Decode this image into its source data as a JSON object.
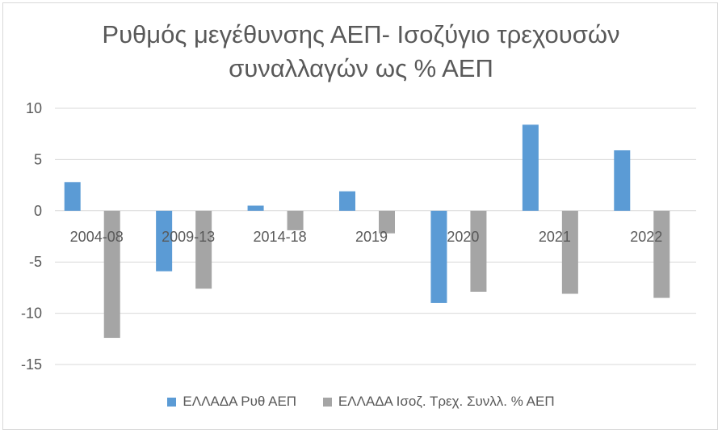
{
  "chart_data": {
    "type": "bar",
    "title_lines": [
      "Ρυθμός μεγέθυνσης ΑΕΠ- Ισοζύγιο τρεχουσών",
      "συναλλαγών ως %  ΑΕΠ"
    ],
    "categories": [
      "2004-08",
      "2009-13",
      "2014-18",
      "2019",
      "2020",
      "2021",
      "2022"
    ],
    "series": [
      {
        "name": "ΕΛΛΑΔΑ Ρυθ ΑΕΠ",
        "color": "#5b9bd5",
        "values": [
          2.8,
          -5.9,
          0.5,
          1.9,
          -9.0,
          8.4,
          5.9
        ]
      },
      {
        "name": "ΕΛΛΑΔΑ Ισοζ. Τρεχ. Συνλλ. % ΑΕΠ",
        "color": "#a5a5a5",
        "values": [
          -12.4,
          -7.6,
          -1.9,
          -2.2,
          -7.9,
          -8.1,
          -8.5
        ]
      }
    ],
    "ylim": [
      -15,
      10
    ],
    "yticks": [
      10,
      5,
      0,
      -5,
      -10,
      -15
    ],
    "grid": true,
    "legend_position": "bottom"
  }
}
